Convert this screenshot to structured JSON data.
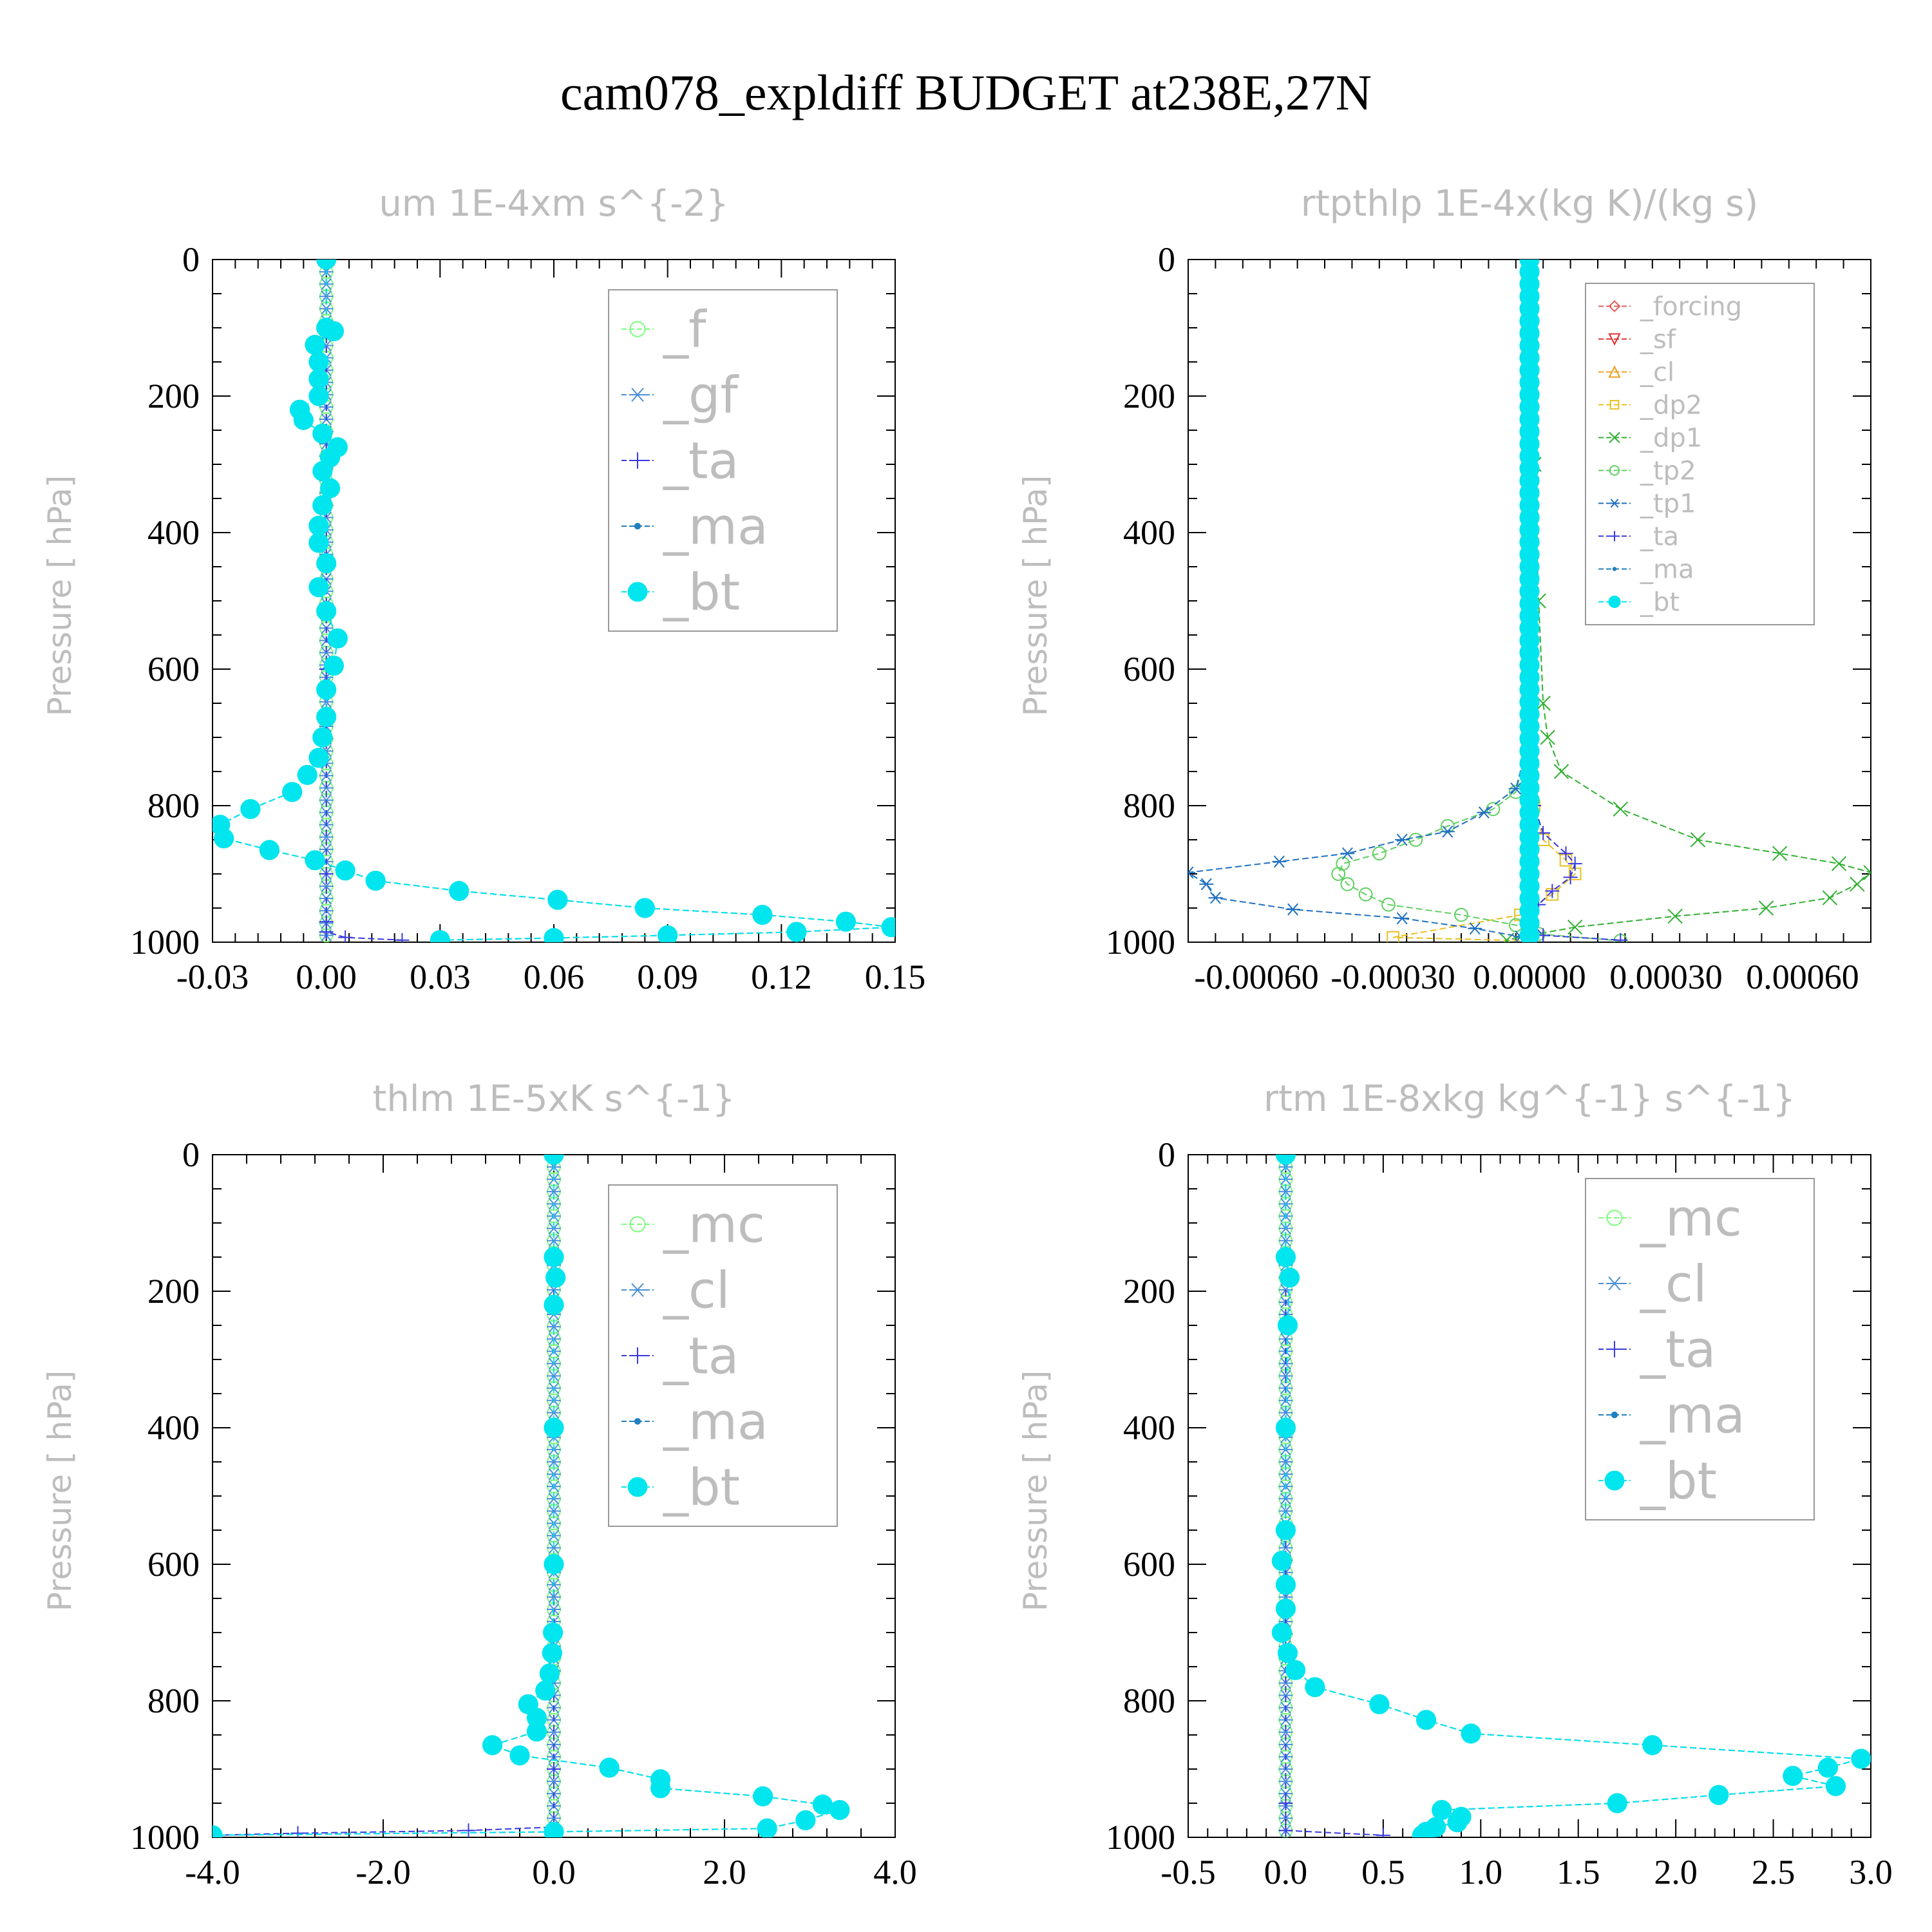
{
  "figure_title": "cam078_expldiff  BUDGET at238E,27N",
  "chart_data": [
    {
      "type": "line",
      "title": "um  1E-4xm s^{-2}",
      "ylabel": "Pressure [ hPa]",
      "xlabel": "",
      "xlim": [
        -0.03,
        0.15
      ],
      "ylim": [
        1000,
        0
      ],
      "x_ticks": [
        "-0.03",
        "0.00",
        "0.03",
        "0.06",
        "0.09",
        "0.12",
        "0.15"
      ],
      "y_ticks": [
        "0",
        "200",
        "400",
        "600",
        "800",
        "1000"
      ],
      "legend": {
        "position": "top-right",
        "entries": [
          "_f",
          "_gf",
          "_ta",
          "_ma",
          "_bt"
        ]
      },
      "series": [
        {
          "name": "_f",
          "color": "#7CFC7C",
          "marker": "circle-open",
          "constant": 0.0
        },
        {
          "name": "_gf",
          "color": "#4a8fd8",
          "marker": "asterisk",
          "constant": 0.0
        },
        {
          "name": "_ta",
          "color": "#3a3ae0",
          "marker": "plus",
          "points": [
            [
              0.0,
              0
            ],
            [
              0.0,
              300
            ],
            [
              0.0,
              600
            ],
            [
              0.0,
              900
            ],
            [
              0.0,
              970
            ],
            [
              0.0,
              985
            ],
            [
              0.005,
              993
            ],
            [
              0.02,
              997
            ]
          ]
        },
        {
          "name": "_ma",
          "color": "#2080c0",
          "marker": "dot",
          "points": [
            [
              0.0,
              0
            ],
            [
              0.0,
              100
            ],
            [
              0.002,
              105
            ],
            [
              -0.003,
              125
            ],
            [
              -0.002,
              150
            ],
            [
              -0.002,
              175
            ],
            [
              -0.002,
              200
            ],
            [
              -0.007,
              220
            ],
            [
              -0.006,
              235
            ],
            [
              -0.001,
              255
            ],
            [
              0.003,
              275
            ],
            [
              0.001,
              290
            ],
            [
              -0.001,
              310
            ],
            [
              0.001,
              335
            ],
            [
              -0.001,
              360
            ],
            [
              -0.002,
              390
            ],
            [
              -0.002,
              415
            ],
            [
              0.0,
              445
            ],
            [
              -0.002,
              480
            ],
            [
              0.0,
              515
            ],
            [
              0.003,
              555
            ],
            [
              0.002,
              595
            ],
            [
              0.0,
              630
            ],
            [
              0.0,
              670
            ],
            [
              -0.001,
              700
            ],
            [
              -0.002,
              730
            ],
            [
              -0.005,
              755
            ],
            [
              -0.009,
              780
            ],
            [
              -0.02,
              805
            ],
            [
              -0.028,
              828
            ],
            [
              -0.027,
              848
            ],
            [
              -0.015,
              865
            ],
            [
              -0.003,
              880
            ],
            [
              0.005,
              895
            ],
            [
              0.013,
              910
            ],
            [
              0.035,
              925
            ],
            [
              0.061,
              938
            ],
            [
              0.084,
              950
            ],
            [
              0.115,
              960
            ],
            [
              0.137,
              970
            ],
            [
              0.149,
              978
            ],
            [
              0.124,
              985
            ],
            [
              0.09,
              990
            ],
            [
              0.06,
              994
            ],
            [
              0.03,
              997
            ]
          ]
        },
        {
          "name": "_bt",
          "color": "#00e5ee",
          "marker": "dot-filled",
          "same_as": "_ma"
        }
      ]
    },
    {
      "type": "line",
      "title": "rtpthlp  1E-4x(kg K)/(kg s)",
      "ylabel": "Pressure [ hPa]",
      "xlabel": "",
      "xlim": [
        -0.00075,
        0.00075
      ],
      "ylim": [
        1000,
        0
      ],
      "x_ticks": [
        "-0.00060",
        "-0.00030",
        "0.00000",
        "0.00030",
        "0.00060"
      ],
      "y_ticks": [
        "0",
        "200",
        "400",
        "600",
        "800",
        "1000"
      ],
      "legend": {
        "position": "top-right",
        "entries": [
          "_forcing",
          "_sf",
          "_cl",
          "_dp2",
          "_dp1",
          "_tp2",
          "_tp1",
          "_ta",
          "_ma",
          "_bt"
        ]
      },
      "series": [
        {
          "name": "_forcing",
          "color": "#e06060",
          "marker": "diamond-open",
          "constant": 0.0
        },
        {
          "name": "_sf",
          "color": "#e03030",
          "marker": "triangle-down-open",
          "constant": 0.0
        },
        {
          "name": "_cl",
          "color": "#f0a020",
          "marker": "triangle-up-open",
          "constant": 0.0
        },
        {
          "name": "_dp2",
          "color": "#e8c020",
          "marker": "square-open",
          "points": [
            [
              0.0,
              0
            ],
            [
              0.0,
              700
            ],
            [
              1e-05,
              800
            ],
            [
              3e-05,
              850
            ],
            [
              8e-05,
              880
            ],
            [
              0.0001,
              900
            ],
            [
              5e-05,
              930
            ],
            [
              -2e-05,
              960
            ],
            [
              -0.0003,
              993
            ],
            [
              0.0,
              998
            ]
          ]
        },
        {
          "name": "_dp1",
          "color": "#30b030",
          "marker": "x",
          "points": [
            [
              0.0,
              0
            ],
            [
              1e-05,
              300
            ],
            [
              2e-05,
              500
            ],
            [
              3e-05,
              650
            ],
            [
              4e-05,
              700
            ],
            [
              7e-05,
              750
            ],
            [
              0.0002,
              805
            ],
            [
              0.00037,
              850
            ],
            [
              0.00055,
              870
            ],
            [
              0.00068,
              885
            ],
            [
              0.00075,
              898
            ],
            [
              0.00072,
              915
            ],
            [
              0.00066,
              935
            ],
            [
              0.00052,
              950
            ],
            [
              0.00032,
              962
            ],
            [
              0.0001,
              978
            ],
            [
              0.0,
              990
            ],
            [
              -5e-05,
              997
            ]
          ]
        },
        {
          "name": "_tp2",
          "color": "#60d060",
          "marker": "circle-open",
          "points": [
            [
              0.0,
              0
            ],
            [
              0.0,
              700
            ],
            [
              -3e-05,
              780
            ],
            [
              -8e-05,
              805
            ],
            [
              -0.00018,
              830
            ],
            [
              -0.00025,
              850
            ],
            [
              -0.00033,
              870
            ],
            [
              -0.00041,
              885
            ],
            [
              -0.00042,
              900
            ],
            [
              -0.0004,
              915
            ],
            [
              -0.00036,
              930
            ],
            [
              -0.00031,
              945
            ],
            [
              -0.00015,
              960
            ],
            [
              -3e-05,
              975
            ],
            [
              2e-05,
              988
            ],
            [
              0.0002,
              998
            ]
          ]
        },
        {
          "name": "_tp1",
          "color": "#2070c0",
          "marker": "asterisk",
          "points": [
            [
              0.0,
              0
            ],
            [
              0.0,
              700
            ],
            [
              -3e-05,
              775
            ],
            [
              -0.0001,
              810
            ],
            [
              -0.00018,
              838
            ],
            [
              -0.00028,
              850
            ],
            [
              -0.0004,
              870
            ],
            [
              -0.00055,
              882
            ],
            [
              -0.00075,
              898
            ],
            [
              -0.00071,
              915
            ],
            [
              -0.00069,
              935
            ],
            [
              -0.00052,
              952
            ],
            [
              -0.00028,
              965
            ],
            [
              -0.00012,
              980
            ],
            [
              -2e-05,
              992
            ],
            [
              0.0,
              998
            ]
          ]
        },
        {
          "name": "_ta",
          "color": "#3a3ae0",
          "marker": "plus",
          "points": [
            [
              0.0,
              0
            ],
            [
              0.0,
              700
            ],
            [
              1e-05,
              800
            ],
            [
              3e-05,
              840
            ],
            [
              8e-05,
              870
            ],
            [
              0.0001,
              885
            ],
            [
              9e-05,
              905
            ],
            [
              5e-05,
              925
            ],
            [
              2e-05,
              945
            ],
            [
              0.0,
              970
            ],
            [
              3e-05,
              990
            ],
            [
              0.0002,
              997
            ]
          ]
        },
        {
          "name": "_ma",
          "color": "#2080c0",
          "marker": "dot",
          "constant": 0.0
        },
        {
          "name": "_bt",
          "color": "#00e5ee",
          "marker": "dot-filled",
          "constant": 0.0
        }
      ]
    },
    {
      "type": "line",
      "title": "thlm  1E-5xK s^{-1}",
      "ylabel": "Pressure [ hPa]",
      "xlabel": "",
      "xlim": [
        -4.0,
        4.0
      ],
      "ylim": [
        1000,
        0
      ],
      "x_ticks": [
        "-4.0",
        "-2.0",
        "0.0",
        "2.0",
        "4.0"
      ],
      "y_ticks": [
        "0",
        "200",
        "400",
        "600",
        "800",
        "1000"
      ],
      "legend": {
        "position": "top-right",
        "entries": [
          "_mc",
          "_cl",
          "_ta",
          "_ma",
          "_bt"
        ]
      },
      "series": [
        {
          "name": "_mc",
          "color": "#7CFC7C",
          "marker": "circle-open",
          "constant": 0.0
        },
        {
          "name": "_cl",
          "color": "#4a8fd8",
          "marker": "asterisk",
          "constant": 0.0
        },
        {
          "name": "_ta",
          "color": "#3a3ae0",
          "marker": "plus",
          "points": [
            [
              0.0,
              0
            ],
            [
              0.0,
              900
            ],
            [
              0.0,
              985
            ],
            [
              -1.0,
              990
            ],
            [
              -3.0,
              994
            ],
            [
              -4.0,
              997
            ]
          ]
        },
        {
          "name": "_ma",
          "color": "#2080c0",
          "marker": "dot",
          "points": [
            [
              0.0,
              0
            ],
            [
              0.0,
              150
            ],
            [
              0.02,
              180
            ],
            [
              0.0,
              220
            ],
            [
              0.0,
              400
            ],
            [
              0.0,
              600
            ],
            [
              -0.01,
              700
            ],
            [
              -0.02,
              730
            ],
            [
              -0.05,
              760
            ],
            [
              -0.1,
              785
            ],
            [
              -0.3,
              805
            ],
            [
              -0.2,
              825
            ],
            [
              -0.2,
              845
            ],
            [
              -0.72,
              865
            ],
            [
              -0.4,
              880
            ],
            [
              0.65,
              898
            ],
            [
              1.25,
              915
            ],
            [
              1.25,
              928
            ],
            [
              2.45,
              940
            ],
            [
              3.15,
              952
            ],
            [
              3.35,
              960
            ],
            [
              2.95,
              975
            ],
            [
              2.5,
              987
            ],
            [
              0.0,
              992
            ],
            [
              -4.0,
              997
            ]
          ]
        },
        {
          "name": "_bt",
          "color": "#00e5ee",
          "marker": "dot-filled",
          "same_as": "_ma"
        }
      ]
    },
    {
      "type": "line",
      "title": "rtm  1E-8xkg kg^{-1} s^{-1}",
      "ylabel": "Pressure [ hPa]",
      "xlabel": "",
      "xlim": [
        -0.5,
        3.0
      ],
      "ylim": [
        1000,
        0
      ],
      "x_ticks": [
        "-0.5",
        "0.0",
        "0.5",
        "1.0",
        "1.5",
        "2.0",
        "2.5",
        "3.0"
      ],
      "y_ticks": [
        "0",
        "200",
        "400",
        "600",
        "800",
        "1000"
      ],
      "legend": {
        "position": "top-right",
        "entries": [
          "_mc",
          "_cl",
          "_ta",
          "_ma",
          "_bt"
        ]
      },
      "series": [
        {
          "name": "_mc",
          "color": "#7CFC7C",
          "marker": "circle-open",
          "constant": 0.0
        },
        {
          "name": "_cl",
          "color": "#4a8fd8",
          "marker": "asterisk",
          "constant": 0.0
        },
        {
          "name": "_ta",
          "color": "#3a3ae0",
          "marker": "plus",
          "points": [
            [
              0.0,
              0
            ],
            [
              0.0,
              950
            ],
            [
              0.0,
              990
            ],
            [
              0.5,
              997
            ]
          ]
        },
        {
          "name": "_ma",
          "color": "#2080c0",
          "marker": "dot",
          "points": [
            [
              0.0,
              0
            ],
            [
              0.0,
              150
            ],
            [
              0.02,
              180
            ],
            [
              0.01,
              250
            ],
            [
              0.0,
              400
            ],
            [
              0.0,
              550
            ],
            [
              -0.02,
              595
            ],
            [
              0.0,
              630
            ],
            [
              0.0,
              665
            ],
            [
              -0.02,
              700
            ],
            [
              0.01,
              730
            ],
            [
              0.05,
              755
            ],
            [
              0.15,
              780
            ],
            [
              0.48,
              805
            ],
            [
              0.72,
              828
            ],
            [
              0.95,
              848
            ],
            [
              1.88,
              865
            ],
            [
              2.95,
              885
            ],
            [
              2.78,
              898
            ],
            [
              2.6,
              910
            ],
            [
              2.82,
              925
            ],
            [
              2.22,
              938
            ],
            [
              1.7,
              950
            ],
            [
              0.8,
              960
            ],
            [
              0.9,
              970
            ],
            [
              0.88,
              978
            ],
            [
              0.77,
              985
            ],
            [
              0.72,
              992
            ],
            [
              0.7,
              997
            ]
          ]
        },
        {
          "name": "_bt",
          "color": "#00e5ee",
          "marker": "dot-filled",
          "same_as": "_ma"
        }
      ]
    }
  ]
}
